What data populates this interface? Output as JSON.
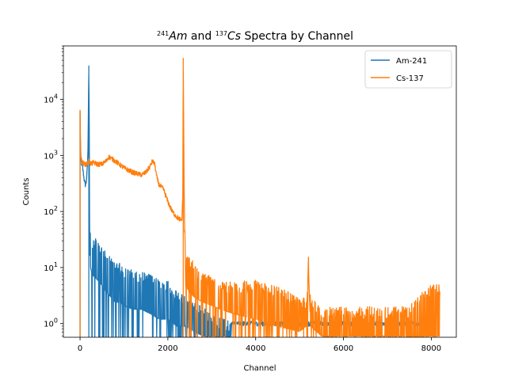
{
  "chart_data": {
    "type": "line",
    "title": {
      "sup1": "241",
      "part1": "Am",
      "mid": " and ",
      "sup2": "137",
      "part2": "Cs",
      "tail": " Spectra by Channel"
    },
    "xlabel": "Channel",
    "ylabel": "Counts",
    "xlim": [
      -380,
      8570
    ],
    "ylim": [
      0.57,
      90000
    ],
    "yscale": "log",
    "xticks": [
      0,
      2000,
      4000,
      6000,
      8000
    ],
    "xtick_labels": [
      "0",
      "2000",
      "4000",
      "6000",
      "8000"
    ],
    "yticks": [
      1,
      10,
      100,
      1000,
      10000
    ],
    "ytick_labels": [
      {
        "base": "10",
        "exp": "0"
      },
      {
        "base": "10",
        "exp": "1"
      },
      {
        "base": "10",
        "exp": "2"
      },
      {
        "base": "10",
        "exp": "3"
      },
      {
        "base": "10",
        "exp": "4"
      }
    ],
    "grid": false,
    "legend": "top-right",
    "series": [
      {
        "name": "Am-241",
        "color": "#1f77b4",
        "x": [
          0,
          10,
          20,
          40,
          60,
          80,
          100,
          120,
          140,
          160,
          180,
          200,
          210,
          215,
          220,
          230,
          250,
          300,
          400,
          500,
          600,
          700,
          800,
          900,
          1000,
          1200,
          1400,
          1600,
          1800,
          2000,
          2200,
          2400,
          2600,
          2800,
          3000,
          3500,
          4000,
          5000,
          6000,
          7000,
          8000
        ],
        "y": [
          6000,
          1500,
          800,
          700,
          600,
          450,
          350,
          300,
          330,
          500,
          1200,
          40000,
          3000,
          150,
          30,
          20,
          15,
          12,
          10,
          8,
          6,
          5,
          4,
          4,
          3.5,
          3,
          3,
          2.5,
          2,
          2,
          1.5,
          1.5,
          1.2,
          1,
          1,
          1,
          1,
          1,
          1,
          1,
          1
        ],
        "noise_upper": [
          1,
          1,
          1,
          1,
          1,
          1,
          1,
          1,
          1,
          1,
          1,
          1,
          1,
          1,
          1.6,
          2.2,
          2.5,
          3,
          3,
          3,
          3,
          3,
          3,
          3,
          3,
          3,
          3,
          3,
          3,
          3,
          2.5,
          2,
          2,
          2,
          1.5,
          1,
          1,
          1,
          1,
          1,
          1
        ]
      },
      {
        "name": "Cs-137",
        "color": "#ff7f0e",
        "x": [
          0,
          10,
          20,
          40,
          60,
          100,
          150,
          200,
          250,
          300,
          400,
          500,
          600,
          650,
          700,
          800,
          1000,
          1200,
          1400,
          1500,
          1600,
          1650,
          1700,
          1750,
          1800,
          1900,
          2000,
          2100,
          2200,
          2300,
          2320,
          2340,
          2350,
          2370,
          2400,
          2500,
          2600,
          2800,
          3000,
          3200,
          3500,
          4000,
          4500,
          5000,
          5150,
          5200,
          5250,
          5500,
          6000,
          6500,
          7000,
          7500,
          8000,
          8100,
          8200
        ],
        "y": [
          6500,
          1200,
          900,
          800,
          750,
          700,
          700,
          800,
          700,
          750,
          700,
          700,
          800,
          950,
          900,
          800,
          600,
          500,
          450,
          500,
          650,
          800,
          700,
          400,
          300,
          250,
          150,
          100,
          80,
          70,
          70,
          200,
          55000,
          300,
          8,
          6,
          5,
          4,
          3.5,
          3,
          2.5,
          2,
          1.5,
          1.2,
          1.5,
          18,
          1.5,
          1,
          1,
          1,
          1,
          1,
          1,
          1,
          1
        ],
        "noise_upper": [
          1,
          1,
          1,
          1,
          1,
          1,
          1,
          1,
          1,
          1,
          1,
          1,
          1,
          1,
          1,
          1,
          1,
          1,
          1,
          1,
          1,
          1,
          1,
          1,
          1,
          1,
          1,
          1,
          1,
          1,
          1,
          1,
          1,
          1,
          2,
          2.5,
          2.5,
          2,
          2,
          2,
          2.2,
          3,
          3,
          2.5,
          2,
          1,
          2,
          2,
          2,
          2,
          2,
          2,
          5,
          5,
          5
        ]
      }
    ]
  }
}
